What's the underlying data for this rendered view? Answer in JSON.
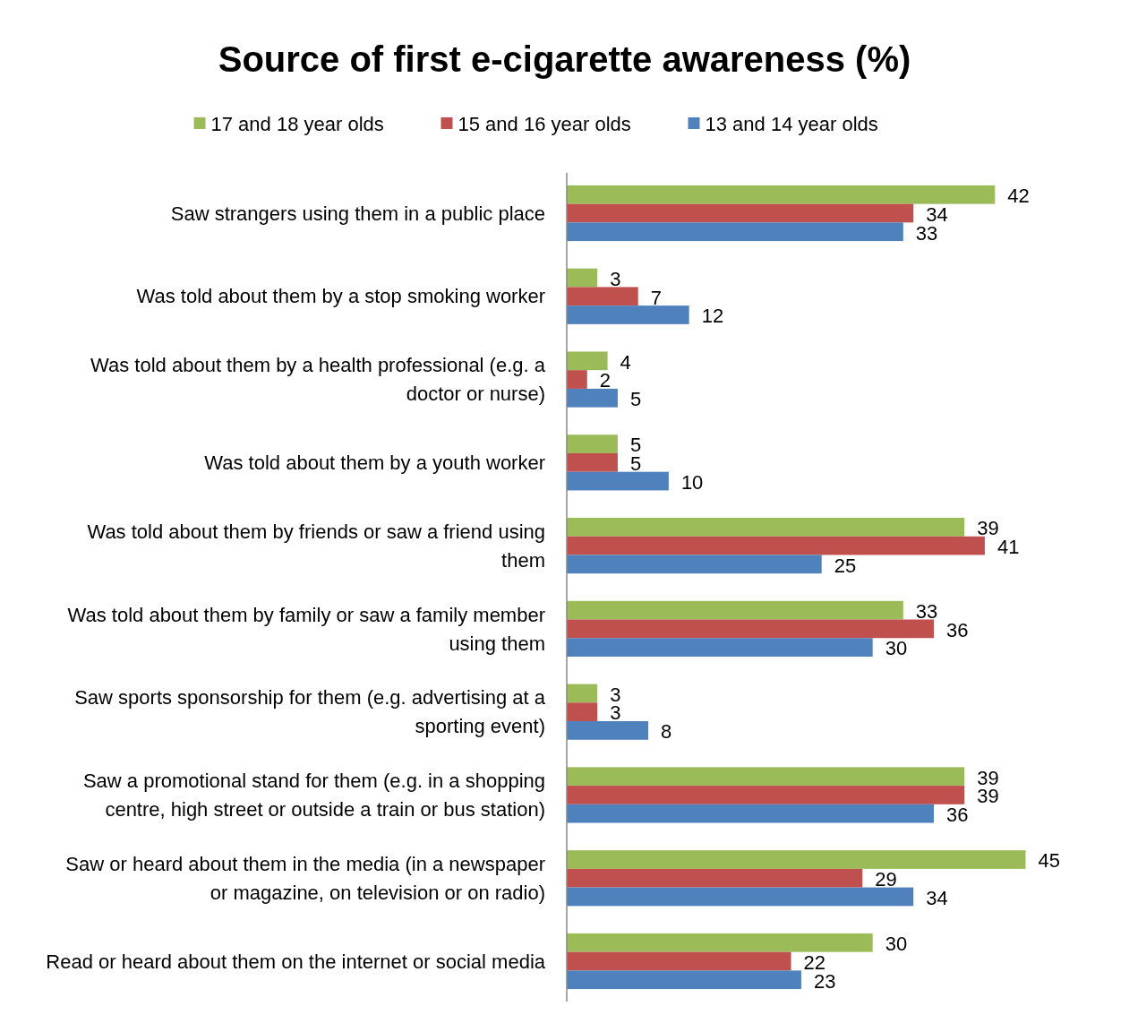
{
  "chart_data": {
    "type": "bar",
    "orientation": "horizontal",
    "title": "Source of first e-cigarette awareness (%)",
    "categories": [
      "Saw strangers using them in a public place",
      "Was told about them by a stop smoking worker",
      "Was told about them by a health professional (e.g. a doctor or nurse)",
      "Was told about them by a youth worker",
      "Was told about them by friends or saw a friend using them",
      "Was told about them by family or saw a family member using them",
      "Saw sports sponsorship for them (e.g. advertising at a sporting event)",
      "Saw a promotional stand for them (e.g. in a shopping centre, high street or outside a train or bus station)",
      "Saw or heard about them in the media (in a newspaper or magazine, on television or on radio)",
      "Read or heard about them on the internet or social media"
    ],
    "series": [
      {
        "name": "17 and 18 year olds",
        "color": "#9bbb59",
        "values": [
          42,
          3,
          4,
          5,
          39,
          33,
          3,
          39,
          45,
          30
        ]
      },
      {
        "name": "15 and 16 year olds",
        "color": "#c0504d",
        "values": [
          34,
          7,
          2,
          5,
          41,
          36,
          3,
          39,
          29,
          22
        ]
      },
      {
        "name": "13 and 14 year olds",
        "color": "#4f81bd",
        "values": [
          33,
          12,
          5,
          10,
          25,
          30,
          8,
          36,
          34,
          23
        ]
      }
    ],
    "data_labels": true,
    "legend": "top"
  }
}
